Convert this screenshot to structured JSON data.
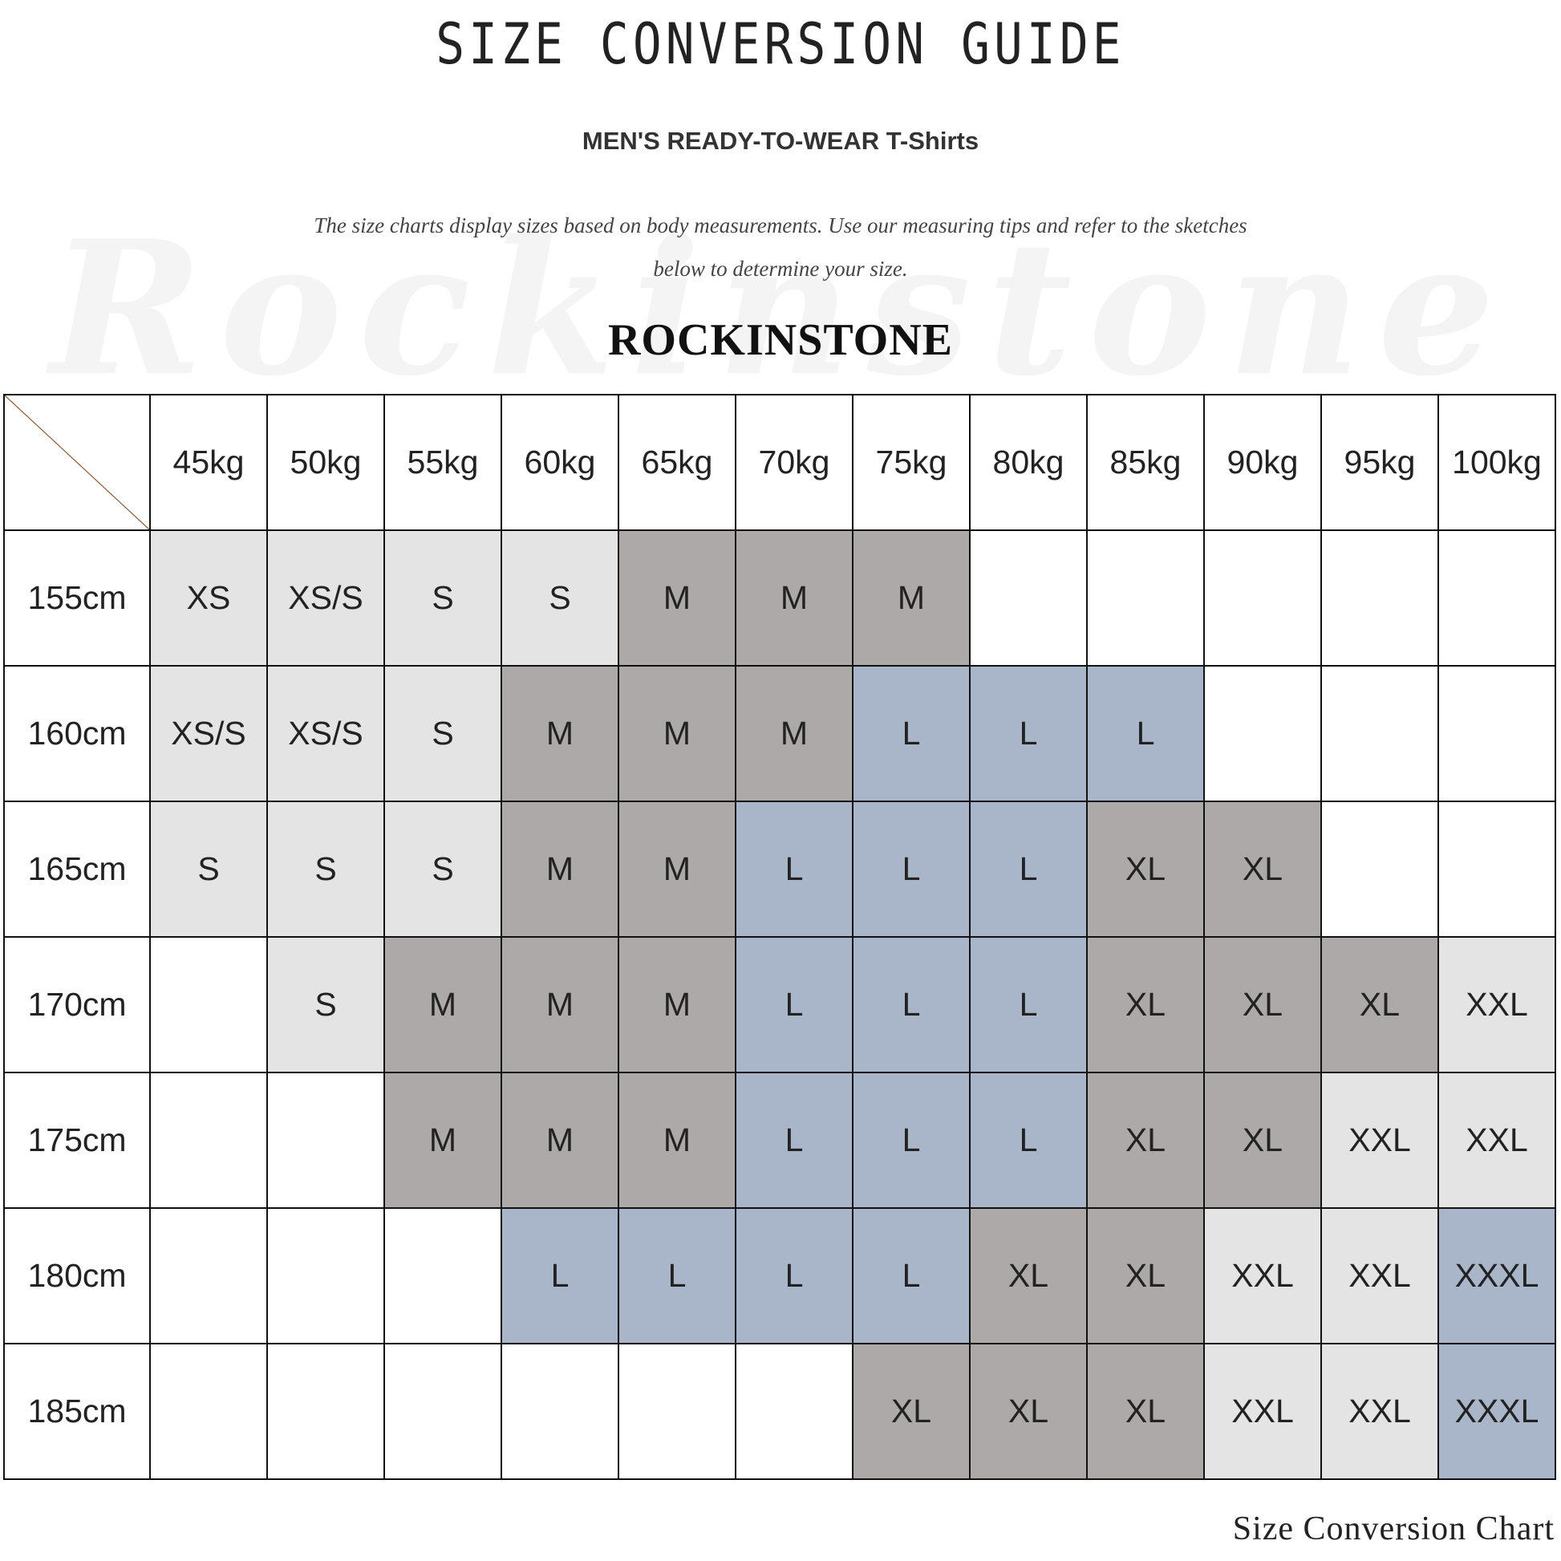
{
  "title": "SIZE CONVERSION GUIDE",
  "subtitle": "MEN'S READY-TO-WEAR T-Shirts",
  "description_line1": "The size charts display sizes based on body measurements. Use our measuring tips and refer to the sketches",
  "description_line2": "below to determine your size.",
  "watermark": "Rockinstone",
  "brand": "ROCKINSTONE",
  "footer": "Size Conversion Chart",
  "colors": {
    "light": "#e4e4e4",
    "dark": "#aca9a8",
    "blue": "#a9b6c9"
  },
  "size_colors": {
    "XS": "light",
    "XS/S": "light",
    "S": "light",
    "M": "dark",
    "L": "blue",
    "XL": "dark",
    "XXL": "light",
    "XXXL": "blue"
  },
  "table": {
    "columns": [
      "45kg",
      "50kg",
      "55kg",
      "60kg",
      "65kg",
      "70kg",
      "75kg",
      "80kg",
      "85kg",
      "90kg",
      "95kg",
      "100kg"
    ],
    "rows": [
      {
        "label": "155cm",
        "cells": [
          "XS",
          "XS/S",
          "S",
          "S",
          "M",
          "M",
          "M",
          "",
          "",
          "",
          "",
          ""
        ]
      },
      {
        "label": "160cm",
        "cells": [
          "XS/S",
          "XS/S",
          "S",
          "M",
          "M",
          "M",
          "L",
          "L",
          "L",
          "",
          "",
          ""
        ]
      },
      {
        "label": "165cm",
        "cells": [
          "S",
          "S",
          "S",
          "M",
          "M",
          "L",
          "L",
          "L",
          "XL",
          "XL",
          "",
          ""
        ]
      },
      {
        "label": "170cm",
        "cells": [
          "",
          "S",
          "M",
          "M",
          "M",
          "L",
          "L",
          "L",
          "XL",
          "XL",
          "XL",
          "XXL"
        ]
      },
      {
        "label": "175cm",
        "cells": [
          "",
          "",
          "M",
          "M",
          "M",
          "L",
          "L",
          "L",
          "XL",
          "XL",
          "XXL",
          "XXL"
        ]
      },
      {
        "label": "180cm",
        "cells": [
          "",
          "",
          "",
          "L",
          "L",
          "L",
          "L",
          "XL",
          "XL",
          "XXL",
          "XXL",
          "XXXL"
        ]
      },
      {
        "label": "185cm",
        "cells": [
          "",
          "",
          "",
          "",
          "",
          "",
          "XL",
          "XL",
          "XL",
          "XXL",
          "XXL",
          "XXXL"
        ]
      }
    ]
  }
}
